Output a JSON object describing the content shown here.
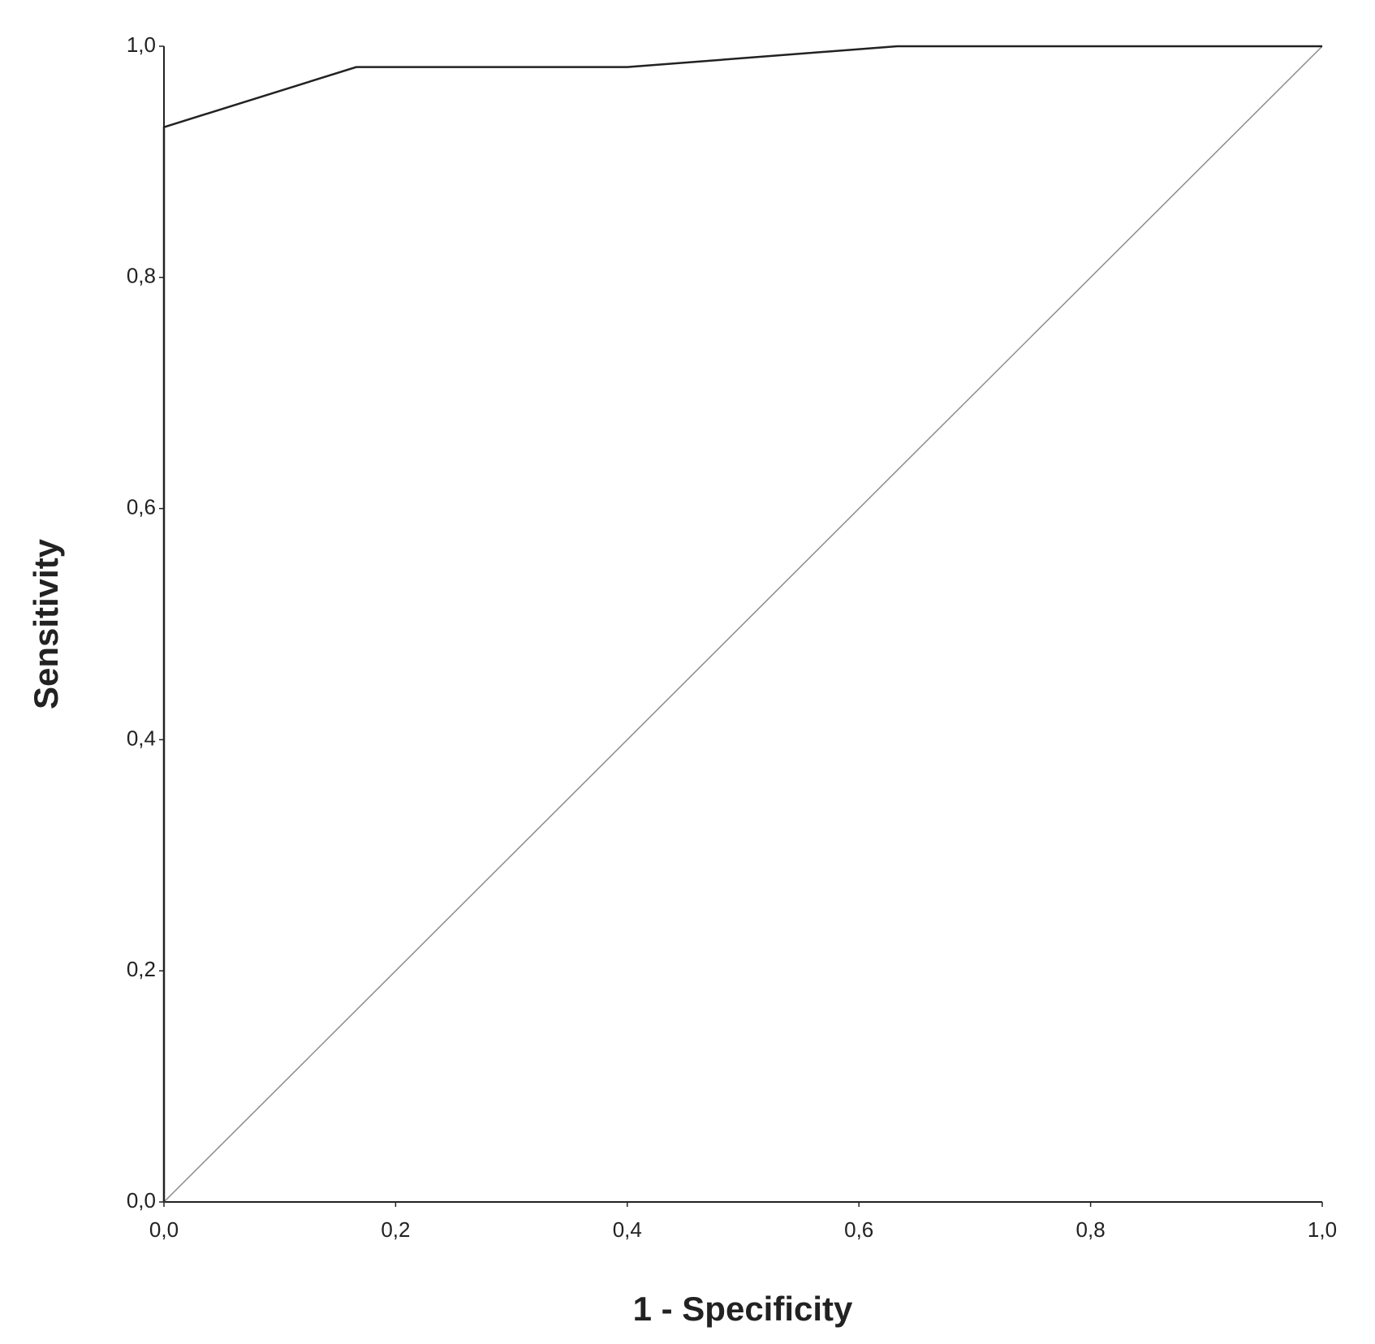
{
  "chart_data": {
    "type": "line",
    "x_label": "1 - Specificity",
    "y_label": "Sensitivity",
    "series": [
      {
        "color": "#222222",
        "x": [
          0,
          0,
          0.166,
          0.4,
          0.633,
          1
        ],
        "values": [
          0,
          0.93,
          0.982,
          0.982,
          1,
          1
        ]
      },
      {
        "color": "#8c8c8c",
        "x": [
          0,
          1
        ],
        "values": [
          0,
          1
        ]
      }
    ],
    "xlim": [
      0,
      1
    ],
    "ylim": [
      0,
      1
    ],
    "xticks": [
      {
        "value": 0,
        "label": "0,0"
      },
      {
        "value": 0.2,
        "label": "0,2"
      },
      {
        "value": 0.4,
        "label": "0,4"
      },
      {
        "value": 0.6,
        "label": "0,6"
      },
      {
        "value": 0.8,
        "label": "0,8"
      },
      {
        "value": 1,
        "label": "1,0"
      }
    ],
    "yticks": [
      {
        "value": 0,
        "label": "0,0"
      },
      {
        "value": 0.2,
        "label": "0,2"
      },
      {
        "value": 0.4,
        "label": "0,4"
      },
      {
        "value": 0.6,
        "label": "0,6"
      },
      {
        "value": 0.8,
        "label": "0,8"
      },
      {
        "value": 1,
        "label": "1,0"
      }
    ]
  }
}
